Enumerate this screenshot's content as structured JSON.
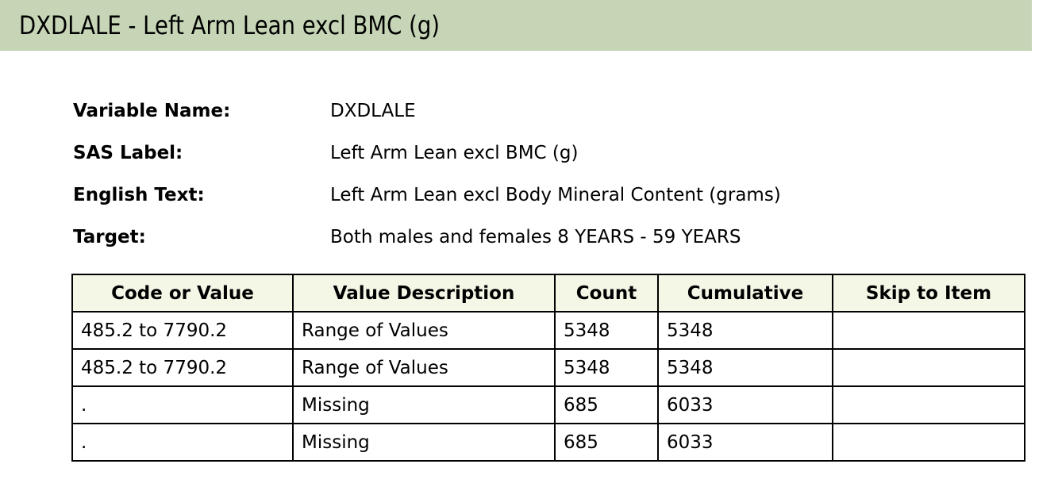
{
  "title": "DXDLALE - Left Arm Lean excl BMC (g)",
  "meta": [
    {
      "label": "Variable Name:",
      "value": "DXDLALE"
    },
    {
      "label": "SAS Label:",
      "value": "Left Arm Lean excl BMC (g)"
    },
    {
      "label": "English Text:",
      "value": "Left Arm Lean excl Body Mineral Content (grams)"
    },
    {
      "label": "Target:",
      "value": "Both males and females 8 YEARS - 59 YEARS"
    }
  ],
  "table": {
    "headers": [
      "Code or Value",
      "Value Description",
      "Count",
      "Cumulative",
      "Skip to Item"
    ],
    "rows": [
      [
        "485.2 to 7790.2",
        "Range of Values",
        "5348",
        "5348",
        ""
      ],
      [
        "485.2 to 7790.2",
        "Range of Values",
        "5348",
        "5348",
        ""
      ],
      [
        ".",
        "Missing",
        "685",
        "6033",
        ""
      ],
      [
        ".",
        "Missing",
        "685",
        "6033",
        ""
      ]
    ]
  },
  "colors": {
    "title_bar": "#c6d5b6",
    "table_header": "#f4f6e6"
  }
}
